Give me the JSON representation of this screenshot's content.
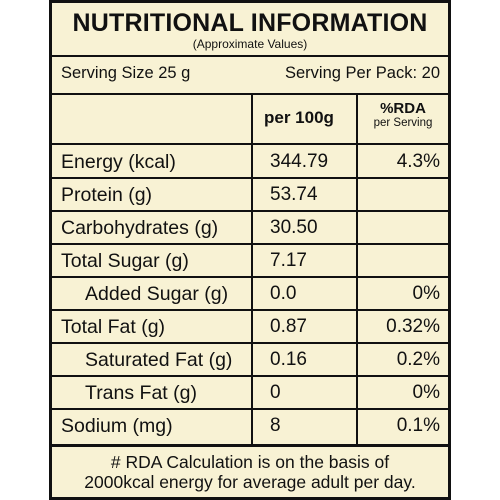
{
  "header": {
    "title": "NUTRITIONAL INFORMATION",
    "subtitle": "(Approximate Values)"
  },
  "serving": {
    "size": "Serving Size 25 g",
    "per_pack": "Serving Per Pack: 20"
  },
  "columns": {
    "per100g": "per 100g",
    "rda": "%RDA",
    "rda_sub": "per Serving"
  },
  "rows": [
    {
      "name": "Energy (kcal)",
      "value": "344.79",
      "rda": "4.3%",
      "indent": false
    },
    {
      "name": "Protein (g)",
      "value": "53.74",
      "rda": "",
      "indent": false
    },
    {
      "name": "Carbohydrates (g)",
      "value": "30.50",
      "rda": "",
      "indent": false
    },
    {
      "name": "Total Sugar (g)",
      "value": "7.17",
      "rda": "",
      "indent": false
    },
    {
      "name": "Added Sugar (g)",
      "value": "0.0",
      "rda": "0%",
      "indent": true
    },
    {
      "name": "Total Fat (g)",
      "value": "0.87",
      "rda": "0.32%",
      "indent": false
    },
    {
      "name": "Saturated Fat (g)",
      "value": "0.16",
      "rda": "0.2%",
      "indent": true
    },
    {
      "name": "Trans Fat (g)",
      "value": "0",
      "rda": "0%",
      "indent": true
    },
    {
      "name": "Sodium (mg)",
      "value": "8",
      "rda": "0.1%",
      "indent": false
    }
  ],
  "footer": {
    "line1": "# RDA Calculation is on the basis of",
    "line2": "2000kcal energy for average adult per day."
  }
}
